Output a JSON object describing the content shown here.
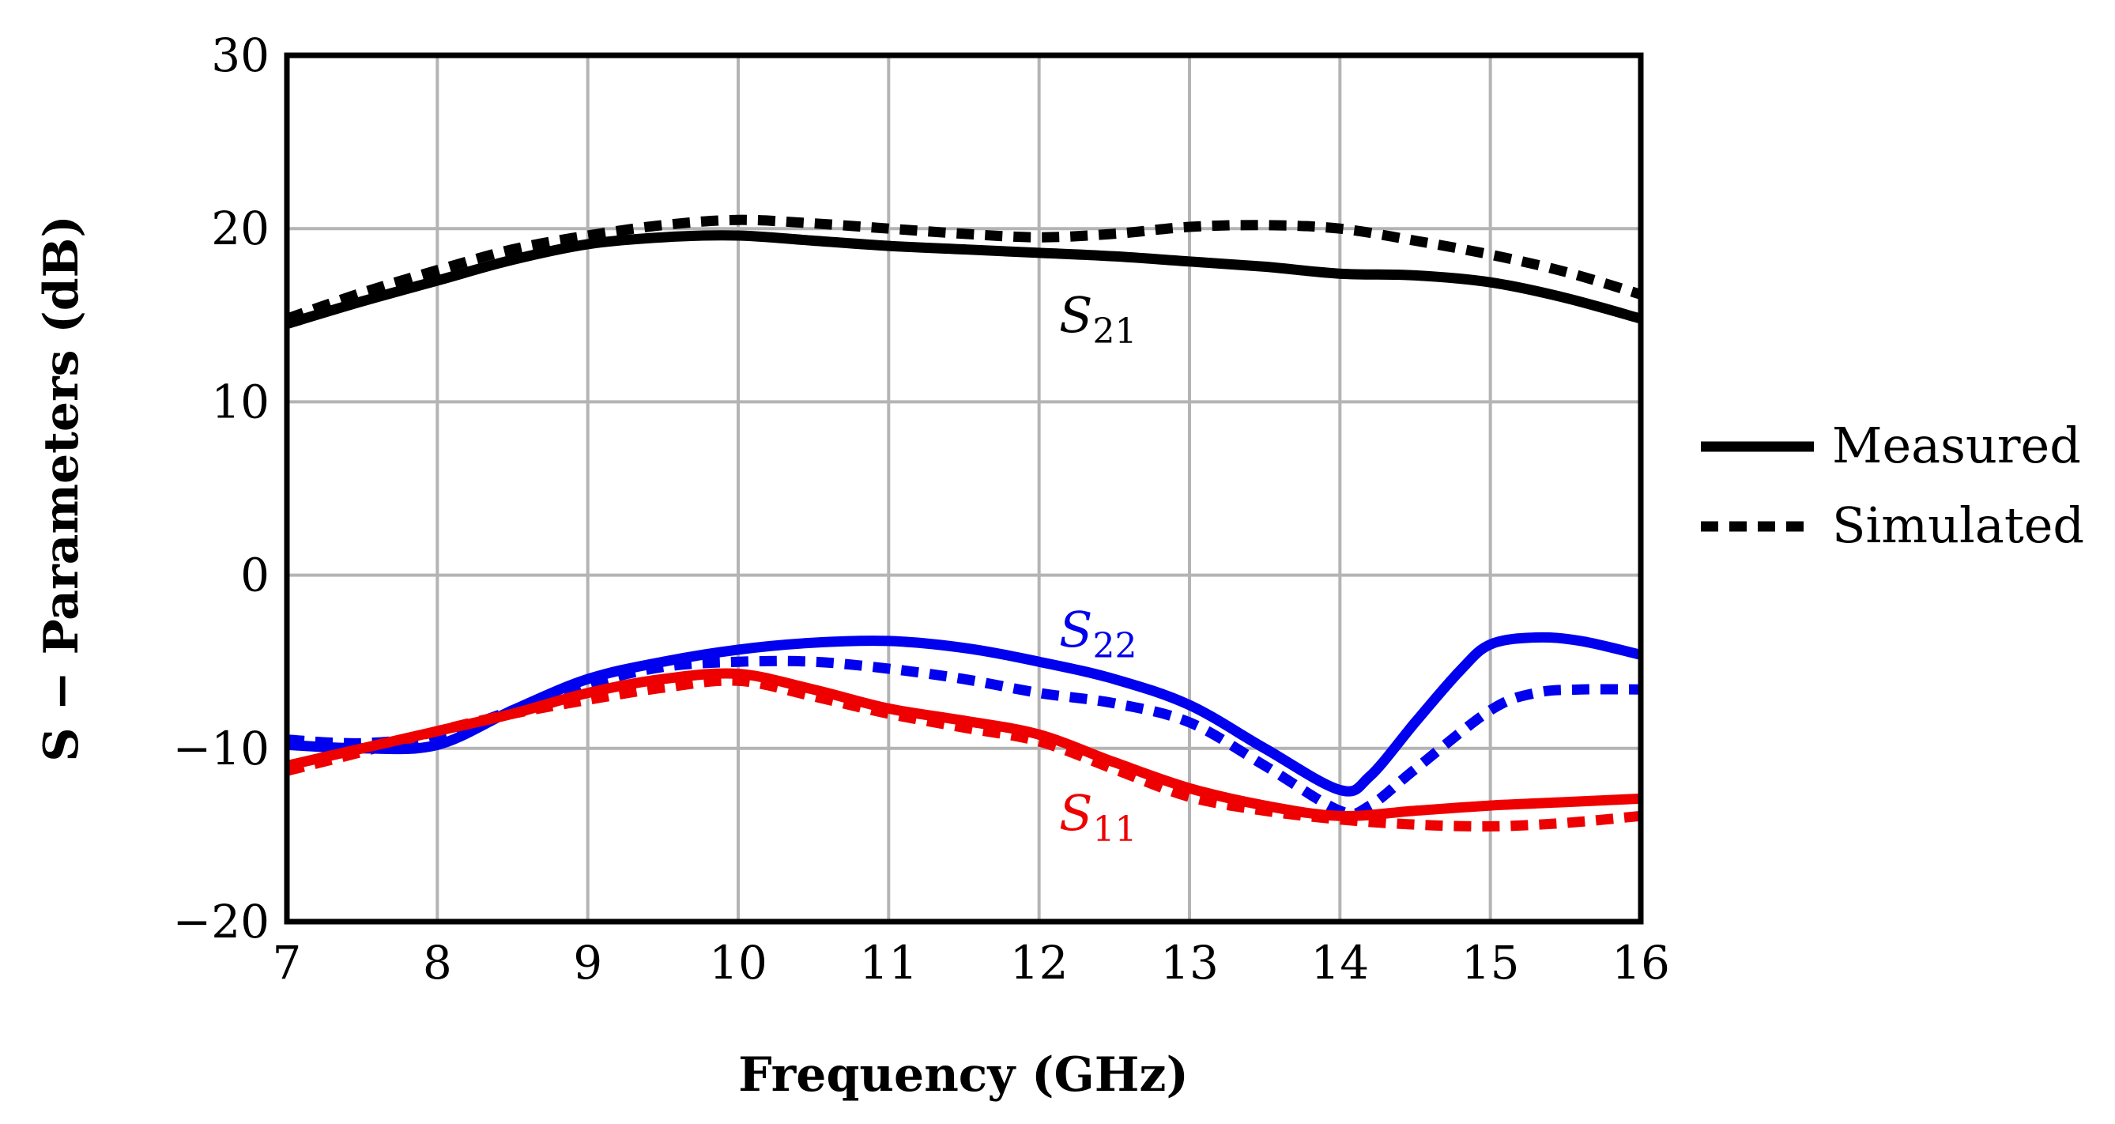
{
  "chart_data": {
    "type": "line",
    "title": "",
    "xlabel": "Frequency (GHz)",
    "ylabel": "S − Parameters (dB)",
    "xlim": [
      7,
      16
    ],
    "ylim": [
      -20,
      30
    ],
    "grid": true,
    "x_ticks": [
      "7",
      "8",
      "9",
      "10",
      "11",
      "12",
      "13",
      "14",
      "15",
      "16"
    ],
    "y_ticks": [
      "−20",
      "−10",
      "0",
      "10",
      "20",
      "30"
    ],
    "legend": {
      "position": "right",
      "entries": [
        {
          "label": "Measured",
          "style": "solid"
        },
        {
          "label": "Simulated",
          "style": "dashed"
        }
      ]
    },
    "annotations": [
      {
        "main": "S",
        "sub": "21",
        "color": "#000000"
      },
      {
        "main": "S",
        "sub": "22",
        "color": "#0000ee"
      },
      {
        "main": "S",
        "sub": "11",
        "color": "#ee0000"
      }
    ],
    "series": [
      {
        "name": "S21 Measured",
        "color": "#000000",
        "style": "solid",
        "x": [
          7,
          7.5,
          8,
          8.5,
          9,
          9.5,
          10,
          10.5,
          11,
          11.5,
          12,
          12.5,
          13,
          13.5,
          14,
          14.5,
          15,
          15.5,
          16
        ],
        "y": [
          14.5,
          15.8,
          17.0,
          18.2,
          19.1,
          19.5,
          19.6,
          19.3,
          19.0,
          18.8,
          18.6,
          18.4,
          18.1,
          17.8,
          17.4,
          17.3,
          16.9,
          16.0,
          14.8
        ]
      },
      {
        "name": "S21 Simulated",
        "color": "#000000",
        "style": "dashed",
        "x": [
          7,
          7.5,
          8,
          8.5,
          9,
          9.5,
          10,
          10.5,
          11,
          11.5,
          12,
          12.5,
          13,
          13.5,
          14,
          14.5,
          15,
          15.5,
          16
        ],
        "y": [
          14.8,
          16.3,
          17.6,
          18.8,
          19.6,
          20.2,
          20.5,
          20.3,
          20.0,
          19.7,
          19.5,
          19.7,
          20.1,
          20.2,
          20.0,
          19.3,
          18.5,
          17.5,
          16.2
        ]
      },
      {
        "name": "S22 Measured",
        "color": "#0000ee",
        "style": "solid",
        "x": [
          7,
          7.5,
          8,
          8.5,
          9,
          9.5,
          10,
          10.5,
          11,
          11.5,
          12,
          12.5,
          13,
          13.5,
          14,
          14.2,
          14.5,
          14.8,
          15,
          15.3,
          15.6,
          16
        ],
        "y": [
          -9.8,
          -10.0,
          -9.8,
          -7.8,
          -6.0,
          -5.0,
          -4.3,
          -3.9,
          -3.8,
          -4.2,
          -5.0,
          -6.0,
          -7.5,
          -10.0,
          -12.4,
          -11.6,
          -8.5,
          -5.5,
          -4.0,
          -3.6,
          -3.8,
          -4.6
        ]
      },
      {
        "name": "S22 Simulated",
        "color": "#0000ee",
        "style": "dashed",
        "x": [
          7,
          7.5,
          8,
          8.5,
          9,
          9.5,
          10,
          10.5,
          11,
          11.5,
          12,
          12.5,
          13,
          13.5,
          14,
          14.2,
          14.5,
          15,
          15.3,
          15.6,
          16
        ],
        "y": [
          -9.5,
          -9.7,
          -9.2,
          -7.8,
          -6.3,
          -5.3,
          -5.0,
          -5.0,
          -5.4,
          -6.0,
          -6.8,
          -7.4,
          -8.5,
          -11.0,
          -13.6,
          -13.3,
          -11.2,
          -7.8,
          -6.8,
          -6.6,
          -6.6
        ]
      },
      {
        "name": "S11 Measured",
        "color": "#ee0000",
        "style": "solid",
        "x": [
          7,
          7.5,
          8,
          8.5,
          9,
          9.5,
          10,
          10.5,
          11,
          11.5,
          12,
          12.5,
          13,
          13.5,
          14,
          14.5,
          15,
          15.5,
          16
        ],
        "y": [
          -11.0,
          -10.0,
          -9.0,
          -8.0,
          -6.8,
          -6.0,
          -5.7,
          -6.6,
          -7.7,
          -8.4,
          -9.2,
          -10.8,
          -12.3,
          -13.3,
          -13.9,
          -13.6,
          -13.3,
          -13.1,
          -12.9
        ]
      },
      {
        "name": "S11 Simulated",
        "color": "#ee0000",
        "style": "dashed",
        "x": [
          7,
          7.5,
          8,
          8.5,
          9,
          9.5,
          10,
          10.5,
          11,
          11.5,
          12,
          12.5,
          13,
          13.5,
          14,
          14.5,
          15,
          15.5,
          16
        ],
        "y": [
          -11.3,
          -10.2,
          -9.0,
          -8.0,
          -7.2,
          -6.5,
          -6.1,
          -7.0,
          -8.0,
          -8.8,
          -9.6,
          -11.2,
          -12.8,
          -13.6,
          -14.1,
          -14.4,
          -14.5,
          -14.3,
          -13.9
        ]
      }
    ]
  }
}
